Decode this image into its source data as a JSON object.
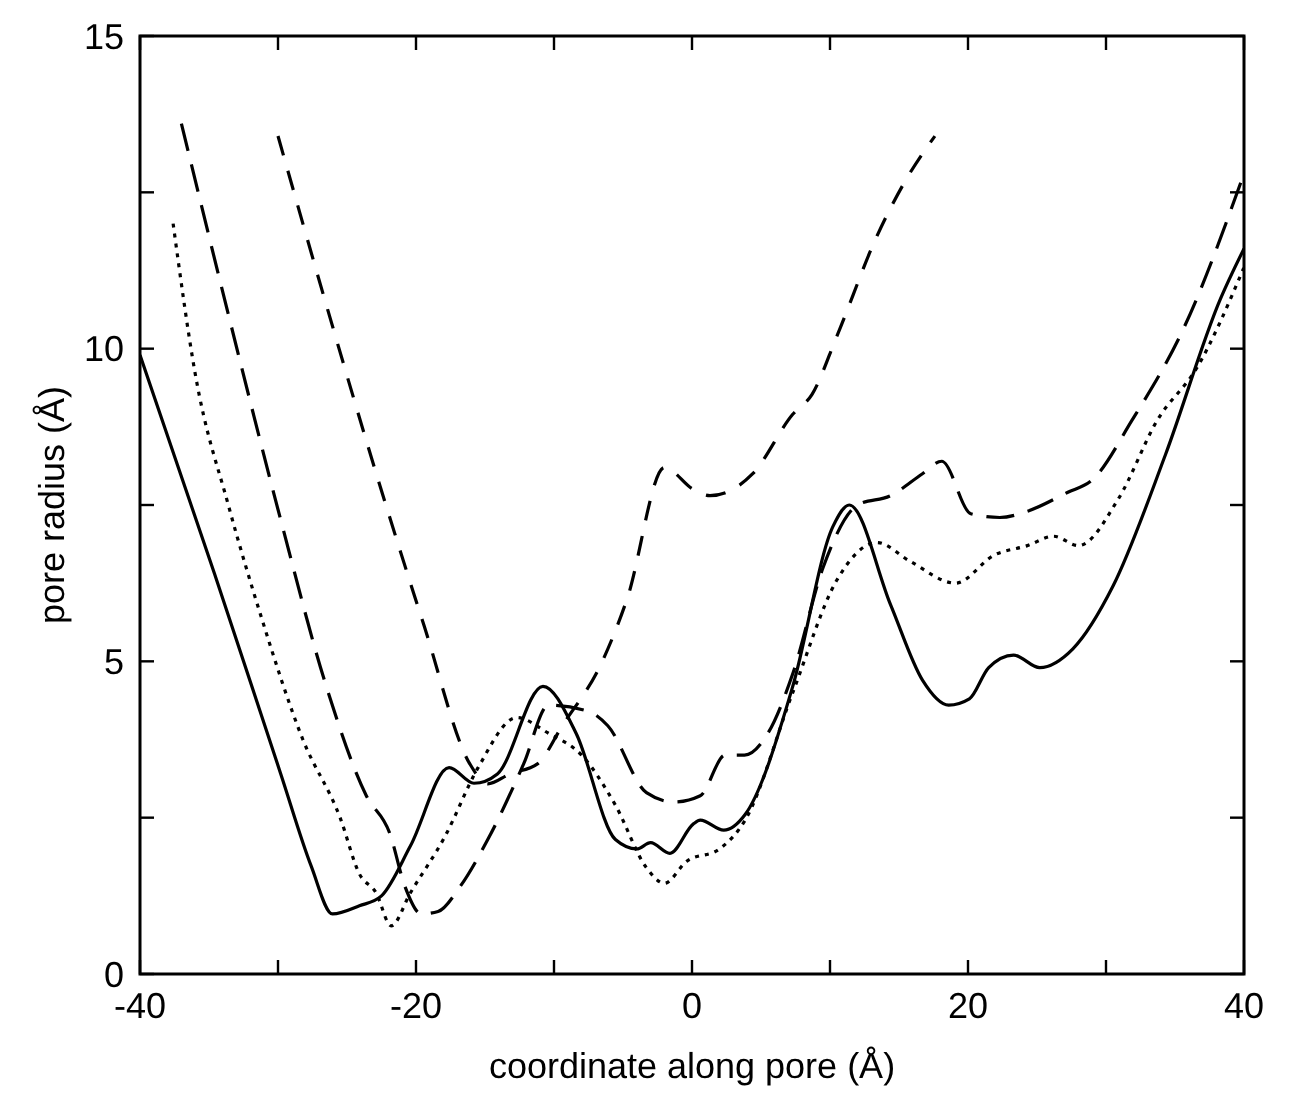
{
  "chart_data": {
    "type": "line",
    "xlabel": "coordinate along pore (Å)",
    "ylabel": "pore radius (Å)",
    "xlim": [
      -40,
      40
    ],
    "ylim": [
      0,
      15
    ],
    "xticks": [
      -40,
      {
        "value": -30,
        "label": null
      },
      -20,
      {
        "value": -10,
        "label": null
      },
      0,
      {
        "value": 10,
        "label": null
      },
      20,
      {
        "value": 30,
        "label": null
      },
      40
    ],
    "yticks": [
      0,
      {
        "value": 2.5,
        "label": null
      },
      5,
      {
        "value": 7.5,
        "label": null
      },
      10,
      {
        "value": 12.5,
        "label": null
      },
      15
    ],
    "grid": false,
    "marker": "none",
    "series": [
      {
        "color": "#000000",
        "line_style": "solid",
        "x": [
          -40,
          -34.6,
          -29.8,
          -27.6,
          -26.05,
          -24.1,
          -22.5,
          -20.4,
          -17.6,
          -15.8,
          -14.1,
          -10.8,
          -8.4,
          -5.55,
          -4.0,
          -3.0,
          -1.6,
          0.1,
          0.6,
          2.3,
          3.85,
          7.3,
          10.2,
          11.4,
          14.4,
          16.7,
          18.6,
          20.1,
          21.5,
          23.3,
          25.2,
          27.6,
          30.5,
          34.3,
          38.3,
          40
        ],
        "values": [
          9.9,
          6.4,
          3.2,
          1.73,
          0.96,
          1.09,
          1.25,
          2.05,
          3.3,
          3.05,
          3.2,
          4.6,
          3.85,
          2.15,
          2.0,
          2.1,
          1.93,
          2.4,
          2.46,
          2.3,
          2.55,
          4.6,
          7.15,
          7.5,
          5.9,
          4.7,
          4.3,
          4.4,
          4.9,
          5.1,
          4.9,
          5.2,
          6.2,
          8.3,
          10.8,
          11.6
        ]
      },
      {
        "color": "#000000",
        "line_style": "dotted",
        "x": [
          -37.6,
          -36.0,
          -33.6,
          -31.2,
          -28.2,
          -25.5,
          -24.1,
          -22.9,
          -21.8,
          -20.4,
          -17.9,
          -15.5,
          -12.7,
          -10.4,
          -8.0,
          -5.55,
          -3.3,
          -2.0,
          -0.4,
          2.0,
          3.85,
          7.3,
          10.5,
          13.4,
          15.8,
          19.1,
          21.9,
          24.3,
          26.2,
          28.0,
          30.9,
          33.7,
          36.6,
          40
        ],
        "values": [
          12.0,
          9.6,
          7.5,
          5.7,
          3.75,
          2.5,
          1.6,
          1.3,
          0.77,
          1.3,
          2.2,
          3.3,
          4.1,
          3.85,
          3.5,
          2.7,
          1.7,
          1.45,
          1.8,
          2.0,
          2.46,
          4.5,
          6.3,
          6.9,
          6.6,
          6.25,
          6.7,
          6.85,
          7.0,
          6.85,
          7.6,
          8.85,
          9.7,
          11.3
        ]
      },
      {
        "color": "#000000",
        "line_style": "dashed",
        "x": [
          -37.0,
          -33.6,
          -29.8,
          -26.5,
          -23.6,
          -21.9,
          -20.8,
          -19.6,
          -18.4,
          -16.8,
          -14.8,
          -12.2,
          -10.4,
          -7.5,
          -6.1,
          -3.3,
          -1.3,
          0.6,
          2.4,
          3.8,
          5.5,
          7.3,
          9.5,
          12.0,
          14.4,
          16.7,
          18.1,
          20.2,
          22.3,
          24.3,
          27.2,
          29.0,
          31.9,
          35.7,
          40
        ],
        "values": [
          13.6,
          10.55,
          7.26,
          4.6,
          2.85,
          2.25,
          1.4,
          0.96,
          1.0,
          1.4,
          2.15,
          3.36,
          4.3,
          4.2,
          3.97,
          2.9,
          2.75,
          2.85,
          3.5,
          3.5,
          3.85,
          4.8,
          6.5,
          7.5,
          7.65,
          8.0,
          8.2,
          7.36,
          7.3,
          7.4,
          7.7,
          7.9,
          8.86,
          10.36,
          12.8
        ]
      },
      {
        "color": "#000000",
        "line_style": "dashed",
        "x": [
          -30.0,
          -26.5,
          -22.6,
          -19.4,
          -16.1,
          -14.8,
          -13.2,
          -11.2,
          -9.4,
          -6.5,
          -4.7,
          -2.0,
          0.1,
          1.3,
          4.4,
          7.3,
          8.7,
          10.5,
          13.4,
          15.5,
          17.6
        ],
        "values": [
          13.4,
          10.7,
          7.8,
          5.56,
          3.36,
          3.04,
          3.2,
          3.36,
          3.97,
          5.0,
          6.0,
          8.1,
          7.75,
          7.65,
          8.0,
          8.95,
          9.27,
          10.2,
          11.8,
          12.7,
          13.4
        ]
      }
    ]
  }
}
